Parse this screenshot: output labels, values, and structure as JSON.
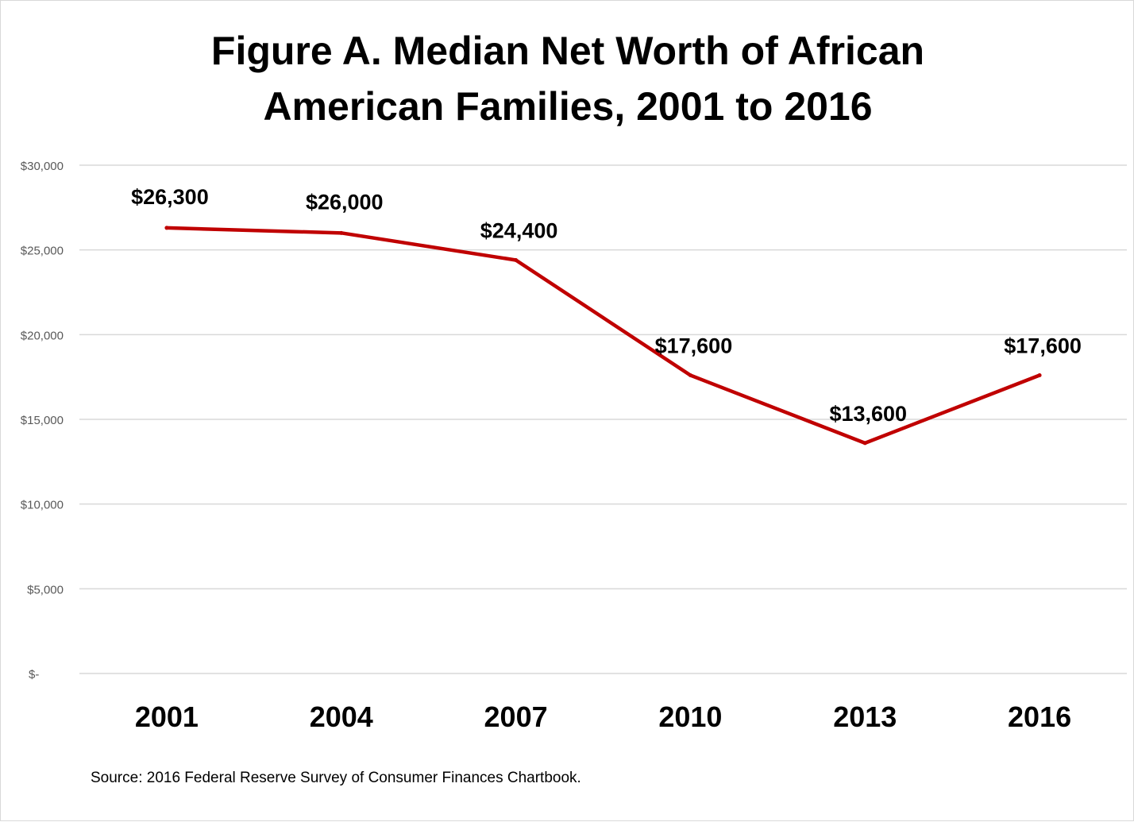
{
  "chart_data": {
    "type": "line",
    "title_lines": [
      "Figure A. Median Net Worth of African",
      "American Families, 2001 to 2016"
    ],
    "categories": [
      "2001",
      "2004",
      "2007",
      "2010",
      "2013",
      "2016"
    ],
    "series": [
      {
        "name": "Median Net Worth",
        "values": [
          26300,
          26000,
          24400,
          17600,
          13600,
          17600
        ],
        "data_labels": [
          "$26,300",
          "$26,000",
          "$24,400",
          "$17,600",
          "$13,600",
          "$17,600"
        ],
        "color": "#c00000"
      }
    ],
    "ylim": [
      0,
      30000
    ],
    "yticks": [
      0,
      5000,
      10000,
      15000,
      20000,
      25000,
      30000
    ],
    "ytick_labels": [
      "$-",
      "$5,000",
      "$10,000",
      "$15,000",
      "$20,000",
      "$25,000",
      "$30,000"
    ],
    "grid": true,
    "xlabel": "",
    "ylabel": ""
  },
  "source": "Source: 2016  Federal Reserve Survey of Consumer Finances Chartbook."
}
